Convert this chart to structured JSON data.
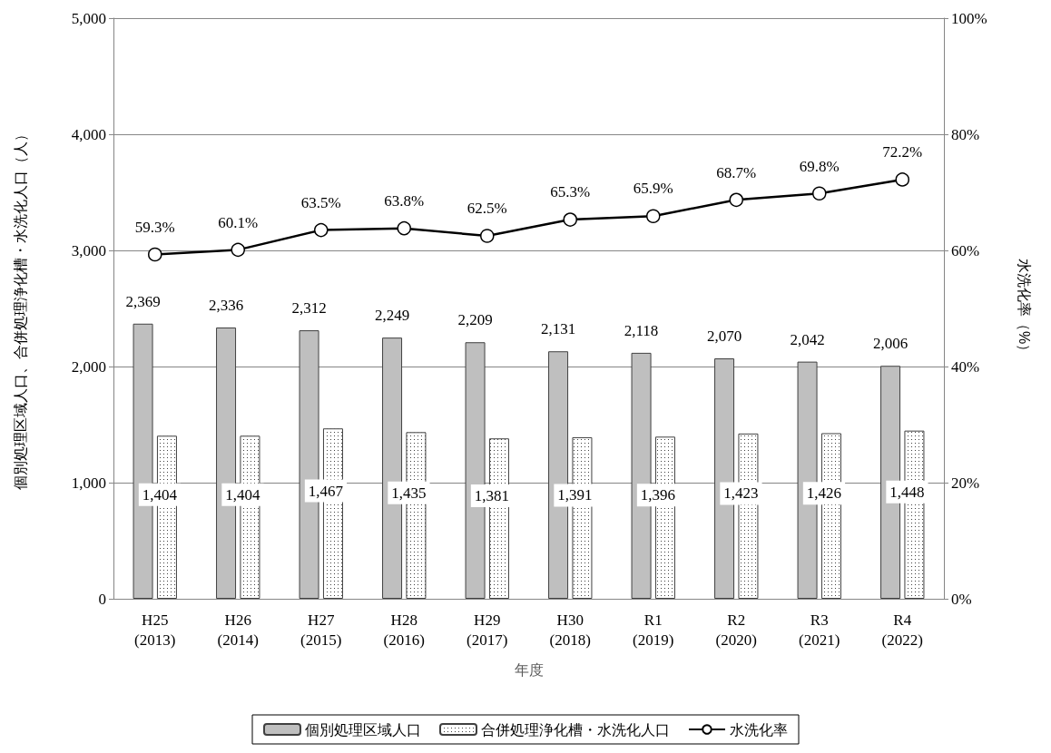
{
  "chart_data": {
    "type": "bar",
    "categories": [
      "H25\n(2013)",
      "H26\n(2014)",
      "H27\n(2015)",
      "H28\n(2016)",
      "H29\n(2017)",
      "H30\n(2018)",
      "R1\n(2019)",
      "R2\n(2020)",
      "R3\n(2021)",
      "R4\n(2022)"
    ],
    "series": [
      {
        "name": "個別処理区域人口",
        "color": "#bfbfbf",
        "values": [
          2369,
          2336,
          2312,
          2249,
          2209,
          2131,
          2118,
          2070,
          2042,
          2006
        ],
        "value_labels": [
          "2,369",
          "2,336",
          "2,312",
          "2,249",
          "2,209",
          "2,131",
          "2,118",
          "2,070",
          "2,042",
          "2,006"
        ]
      },
      {
        "name": "合併処理浄化槽・水洗化人口",
        "color": "#404040",
        "values": [
          1404,
          1404,
          1467,
          1435,
          1381,
          1391,
          1396,
          1423,
          1426,
          1448
        ],
        "value_labels": [
          "1,404",
          "1,404",
          "1,467",
          "1,435",
          "1,381",
          "1,391",
          "1,396",
          "1,423",
          "1,426",
          "1,448"
        ]
      },
      {
        "name": "水洗化率",
        "type": "line",
        "axis": "y2",
        "color": "#000000",
        "values": [
          59.3,
          60.1,
          63.5,
          63.8,
          62.5,
          65.3,
          65.9,
          68.7,
          69.8,
          72.2
        ],
        "value_labels": [
          "59.3%",
          "60.1%",
          "63.5%",
          "63.8%",
          "62.5%",
          "65.3%",
          "65.9%",
          "68.7%",
          "69.8%",
          "72.2%"
        ]
      }
    ],
    "xlabel": "年度",
    "ylabel": "個別処理区域人口、合併処理浄化槽・水洗化人口（人）",
    "y2label": "水洗化率（%）",
    "ylim": [
      0,
      5000
    ],
    "yticks": [
      {
        "value": 0,
        "label": "0"
      },
      {
        "value": 1000,
        "label": "1,000"
      },
      {
        "value": 2000,
        "label": "2,000"
      },
      {
        "value": 3000,
        "label": "3,000"
      },
      {
        "value": 4000,
        "label": "4,000"
      },
      {
        "value": 5000,
        "label": "5,000"
      }
    ],
    "y2lim": [
      0,
      100
    ],
    "y2ticks": [
      {
        "value": 0,
        "label": "0%"
      },
      {
        "value": 20,
        "label": "20%"
      },
      {
        "value": 40,
        "label": "40%"
      },
      {
        "value": 60,
        "label": "60%"
      },
      {
        "value": 80,
        "label": "80%"
      },
      {
        "value": 100,
        "label": "100%"
      }
    ],
    "grid": "y",
    "legend": "bottom",
    "marker": "circle",
    "line_style": "solid"
  }
}
